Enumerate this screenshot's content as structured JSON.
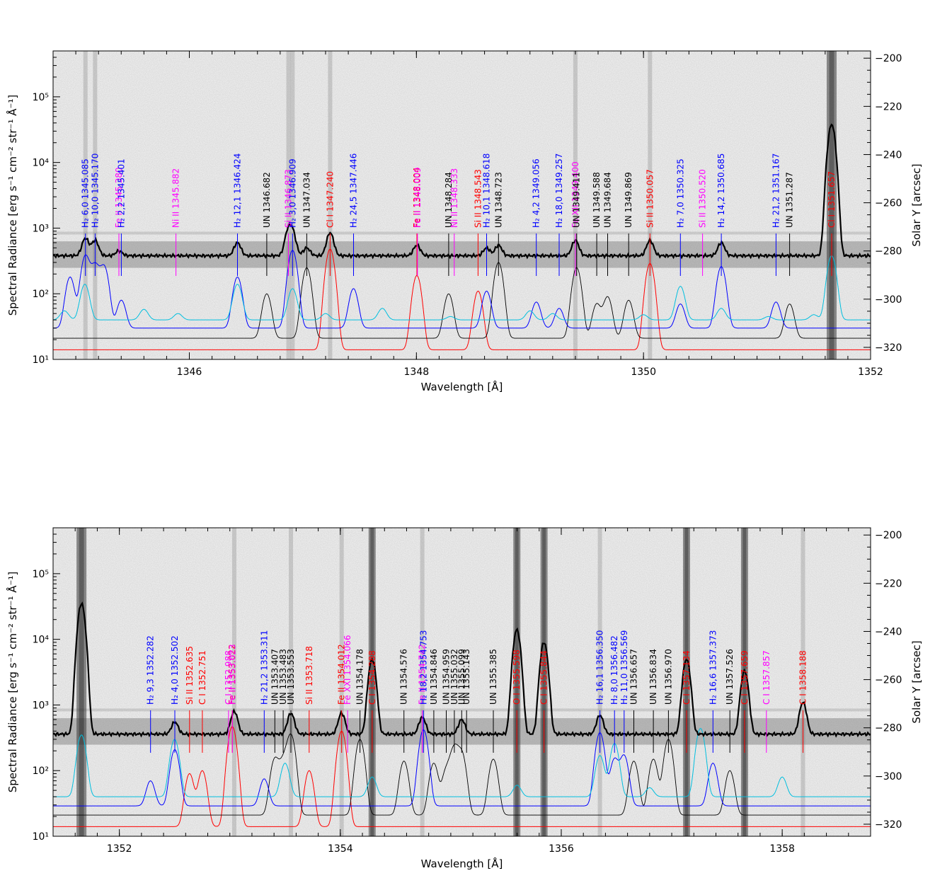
{
  "colors": {
    "h2": "#0000ff",
    "red": "#ff0000",
    "magenta": "#ff00ff",
    "gray": "#000000",
    "black": "#000000",
    "cyan": "#00bfdf",
    "specbg": "#a8a8a8"
  },
  "chart_data": [
    {
      "type": "line",
      "xlabel": "Wavelength [Å]",
      "ylabel": "Spectral Radiance [erg s⁻¹ cm⁻² str⁻¹ Å⁻¹]",
      "y2label": "Solar Y [arcsec]",
      "xlim": [
        1344.8,
        1352.0
      ],
      "ylim": [
        10,
        500000
      ],
      "ylog": true,
      "y2lim": [
        -325,
        -197
      ],
      "xticks": [
        1346,
        1348,
        1350,
        1352
      ],
      "yticks": [
        {
          "v": 10,
          "label": "10¹"
        },
        {
          "v": 100,
          "label": "10²"
        },
        {
          "v": 1000,
          "label": "10³"
        },
        {
          "v": 10000,
          "label": "10⁴"
        },
        {
          "v": 100000,
          "label": "10⁵"
        }
      ],
      "y2ticks": [
        -320,
        -300,
        -280,
        -260,
        -240,
        -220,
        -200
      ],
      "series": [
        {
          "kind": "observed",
          "peaks": [
            [
              1345.085,
              700
            ],
            [
              1345.17,
              650
            ],
            [
              1345.38,
              450
            ],
            [
              1346.424,
              600
            ],
            [
              1346.873,
              900
            ],
            [
              1346.909,
              800
            ],
            [
              1347.034,
              500
            ],
            [
              1347.24,
              850
            ],
            [
              1348.004,
              550
            ],
            [
              1348.618,
              500
            ],
            [
              1348.723,
              550
            ],
            [
              1349.4,
              650
            ],
            [
              1350.057,
              650
            ],
            [
              1350.685,
              600
            ],
            [
              1351.657,
              38000
            ]
          ],
          "base": 380
        },
        {
          "kind": "h2",
          "peaks": [
            [
              1344.95,
              180
            ],
            [
              1345.085,
              380
            ],
            [
              1345.17,
              270
            ],
            [
              1345.25,
              260
            ],
            [
              1345.401,
              80
            ],
            [
              1346.424,
              180
            ],
            [
              1346.909,
              460
            ],
            [
              1347.446,
              120
            ],
            [
              1348.618,
              110
            ],
            [
              1349.056,
              75
            ],
            [
              1349.257,
              60
            ],
            [
              1350.325,
              70
            ],
            [
              1350.685,
              260
            ],
            [
              1351.167,
              75
            ]
          ],
          "base": 30
        },
        {
          "kind": "unidentified",
          "peaks": [
            [
              1346.682,
              100
            ],
            [
              1347.034,
              250
            ],
            [
              1348.284,
              100
            ],
            [
              1348.723,
              300
            ],
            [
              1349.411,
              250
            ],
            [
              1349.588,
              70
            ],
            [
              1349.684,
              90
            ],
            [
              1349.869,
              80
            ],
            [
              1351.287,
              70
            ]
          ],
          "base": 21
        },
        {
          "kind": "strong",
          "peaks": [
            [
              1347.24,
              480
            ],
            [
              1348.004,
              190
            ],
            [
              1348.543,
              110
            ],
            [
              1350.057,
              290
            ]
          ],
          "base": 14
        },
        {
          "kind": "model",
          "peaks": [
            [
              1344.9,
              55
            ],
            [
              1345.08,
              140
            ],
            [
              1345.6,
              58
            ],
            [
              1345.9,
              50
            ],
            [
              1346.424,
              140
            ],
            [
              1346.909,
              120
            ],
            [
              1347.2,
              50
            ],
            [
              1347.7,
              60
            ],
            [
              1348.3,
              45
            ],
            [
              1349.0,
              55
            ],
            [
              1349.2,
              50
            ],
            [
              1350.0,
              48
            ],
            [
              1350.325,
              130
            ],
            [
              1350.685,
              60
            ],
            [
              1351.1,
              45
            ],
            [
              1351.5,
              48
            ],
            [
              1351.657,
              380
            ]
          ],
          "base": 40
        }
      ],
      "annotations": [
        {
          "x": 1345.085,
          "lab": "H₂ 6,0 1345.085",
          "c": "h2"
        },
        {
          "x": 1345.17,
          "lab": "H₂ 10,0 1345.170",
          "c": "h2"
        },
        {
          "x": 1345.38,
          "lab": "Fe II 1345.380",
          "c": "magenta"
        },
        {
          "x": 1345.401,
          "lab": "H₂ 2,2 1345.401",
          "c": "h2"
        },
        {
          "x": 1345.882,
          "lab": "Ni II 1345.882",
          "c": "magenta"
        },
        {
          "x": 1346.424,
          "lab": "H₂ 12,1 1346.424",
          "c": "h2"
        },
        {
          "x": 1346.682,
          "lab": "UN 1346.682",
          "c": "gray"
        },
        {
          "x": 1346.873,
          "lab": "Si II 1346.873",
          "c": "magenta"
        },
        {
          "x": 1346.909,
          "lab": "H₂ 3,0 1346.909",
          "c": "h2"
        },
        {
          "x": 1347.034,
          "lab": "UN 1347.034",
          "c": "gray"
        },
        {
          "x": 1347.24,
          "lab": "Cl I 1347.240",
          "c": "red"
        },
        {
          "x": 1347.446,
          "lab": "H₂ 24,5 1347.446",
          "c": "h2"
        },
        {
          "x": 1348.004,
          "lab": "Fe II 1348.004",
          "c": "red"
        },
        {
          "x": 1348.009,
          "lab": "Fe II 1348.009",
          "c": "magenta"
        },
        {
          "x": 1348.284,
          "lab": "UN 1348.284",
          "c": "gray"
        },
        {
          "x": 1348.333,
          "lab": "Ni II 1348.333",
          "c": "magenta"
        },
        {
          "x": 1348.543,
          "lab": "Si II 1348.543",
          "c": "red"
        },
        {
          "x": 1348.618,
          "lab": "H₂ 10,1 1348.618",
          "c": "h2"
        },
        {
          "x": 1348.723,
          "lab": "UN 1348.723",
          "c": "gray"
        },
        {
          "x": 1349.056,
          "lab": "H₂ 4,2 1349.056",
          "c": "h2"
        },
        {
          "x": 1349.257,
          "lab": "H₂ 18,0 1349.257",
          "c": "h2"
        },
        {
          "x": 1349.4,
          "lab": "Fe XII 1349.400",
          "c": "magenta"
        },
        {
          "x": 1349.411,
          "lab": "UN 1349.411",
          "c": "gray"
        },
        {
          "x": 1349.588,
          "lab": "UN 1349.588",
          "c": "gray"
        },
        {
          "x": 1349.684,
          "lab": "UN 1349.684",
          "c": "gray"
        },
        {
          "x": 1349.869,
          "lab": "UN 1349.869",
          "c": "gray"
        },
        {
          "x": 1350.057,
          "lab": "Si II 1350.057",
          "c": "red"
        },
        {
          "x": 1350.325,
          "lab": "H₂ 7,0 1350.325",
          "c": "h2"
        },
        {
          "x": 1350.52,
          "lab": "Si II 1350.520",
          "c": "magenta"
        },
        {
          "x": 1350.685,
          "lab": "H₂ 14,2 1350.685",
          "c": "h2"
        },
        {
          "x": 1351.167,
          "lab": "H₂ 21,2 1351.167",
          "c": "h2"
        },
        {
          "x": 1351.287,
          "lab": "UN 1351.287",
          "c": "gray"
        },
        {
          "x": 1351.657,
          "lab": "Cl I 1351.657",
          "c": "red"
        }
      ]
    },
    {
      "type": "line",
      "xlabel": "Wavelength [Å]",
      "ylabel": "Spectral Radiance [erg s⁻¹ cm⁻² str⁻¹ Å⁻¹]",
      "y2label": "Solar Y [arcsec]",
      "xlim": [
        1351.4,
        1358.8
      ],
      "ylim": [
        10,
        500000
      ],
      "ylog": true,
      "y2lim": [
        -325,
        -197
      ],
      "xticks": [
        1352,
        1354,
        1356,
        1358
      ],
      "yticks": [
        {
          "v": 10,
          "label": "10¹"
        },
        {
          "v": 100,
          "label": "10²"
        },
        {
          "v": 1000,
          "label": "10³"
        },
        {
          "v": 10000,
          "label": "10⁴"
        },
        {
          "v": 100000,
          "label": "10⁵"
        }
      ],
      "y2ticks": [
        -320,
        -300,
        -280,
        -260,
        -240,
        -220,
        -200
      ],
      "series": [
        {
          "kind": "observed",
          "peaks": [
            [
              1351.657,
              35000
            ],
            [
              1352.502,
              550
            ],
            [
              1353.04,
              800
            ],
            [
              1353.553,
              750
            ],
            [
              1354.012,
              750
            ],
            [
              1354.288,
              5000
            ],
            [
              1354.742,
              650
            ],
            [
              1355.099,
              600
            ],
            [
              1355.598,
              14000
            ],
            [
              1355.844,
              9000
            ],
            [
              1356.35,
              700
            ],
            [
              1357.134,
              5000
            ],
            [
              1357.659,
              3300
            ],
            [
              1358.188,
              1100
            ]
          ],
          "base": 360
        },
        {
          "kind": "h2",
          "peaks": [
            [
              1352.282,
              70
            ],
            [
              1352.502,
              210
            ],
            [
              1353.311,
              75
            ],
            [
              1354.753,
              420
            ],
            [
              1356.35,
              380
            ],
            [
              1356.482,
              150
            ],
            [
              1356.569,
              170
            ],
            [
              1357.373,
              130
            ]
          ],
          "base": 29
        },
        {
          "kind": "unidentified",
          "peaks": [
            [
              1353.407,
              150
            ],
            [
              1353.483,
              130
            ],
            [
              1353.553,
              350
            ],
            [
              1354.178,
              300
            ],
            [
              1354.576,
              140
            ],
            [
              1354.846,
              130
            ],
            [
              1354.959,
              100
            ],
            [
              1355.032,
              220
            ],
            [
              1355.099,
              180
            ],
            [
              1355.385,
              150
            ],
            [
              1356.657,
              140
            ],
            [
              1356.834,
              150
            ],
            [
              1356.97,
              300
            ],
            [
              1357.526,
              100
            ]
          ],
          "base": 21
        },
        {
          "kind": "strong",
          "peaks": [
            [
              1352.635,
              90
            ],
            [
              1352.751,
              100
            ],
            [
              1353.022,
              470
            ],
            [
              1353.718,
              100
            ],
            [
              1354.012,
              400
            ]
          ],
          "base": 14
        },
        {
          "kind": "model",
          "peaks": [
            [
              1351.657,
              350
            ],
            [
              1352.5,
              300
            ],
            [
              1353.5,
              130
            ],
            [
              1354.288,
              80
            ],
            [
              1355.6,
              60
            ],
            [
              1356.35,
              170
            ],
            [
              1356.482,
              260
            ],
            [
              1356.8,
              55
            ],
            [
              1357.26,
              440
            ],
            [
              1358.0,
              80
            ]
          ],
          "base": 40
        }
      ],
      "annotations": [
        {
          "x": 1352.282,
          "lab": "H₂ 9,3 1352.282",
          "c": "h2"
        },
        {
          "x": 1352.502,
          "lab": "H₂ 4,0 1352.502",
          "c": "h2"
        },
        {
          "x": 1352.635,
          "lab": "Si II 1352.635",
          "c": "red"
        },
        {
          "x": 1352.751,
          "lab": "C I 1352.751",
          "c": "red"
        },
        {
          "x": 1352.988,
          "lab": "C I 1352.988",
          "c": "magenta"
        },
        {
          "x": 1353.022,
          "lab": "Fe II 1353.022",
          "c": "red"
        },
        {
          "x": 1353.023,
          "lab": "Fe II 1353.023",
          "c": "magenta"
        },
        {
          "x": 1353.311,
          "lab": "H₂ 21,2 1353.311",
          "c": "h2"
        },
        {
          "x": 1353.407,
          "lab": "UN 1353.407",
          "c": "gray"
        },
        {
          "x": 1353.483,
          "lab": "UN 1353.483",
          "c": "gray"
        },
        {
          "x": 1353.553,
          "lab": "UN 1353.553",
          "c": "gray"
        },
        {
          "x": 1353.718,
          "lab": "Si II 1353.718",
          "c": "red"
        },
        {
          "x": 1354.012,
          "lab": "Fe II 1354.012",
          "c": "red"
        },
        {
          "x": 1354.066,
          "lab": "Fe XXI 1354.066",
          "c": "magenta"
        },
        {
          "x": 1354.178,
          "lab": "UN 1354.178",
          "c": "gray"
        },
        {
          "x": 1354.288,
          "lab": "C I 1354.288",
          "c": "red"
        },
        {
          "x": 1354.576,
          "lab": "UN 1354.576",
          "c": "gray"
        },
        {
          "x": 1354.742,
          "lab": "Fe II 1354.742",
          "c": "magenta"
        },
        {
          "x": 1354.753,
          "lab": "H₂ 18,2 1354.753",
          "c": "h2"
        },
        {
          "x": 1354.846,
          "lab": "UN 1354.846",
          "c": "gray"
        },
        {
          "x": 1354.959,
          "lab": "UN 1354.959",
          "c": "gray"
        },
        {
          "x": 1355.032,
          "lab": "UN 1355.032",
          "c": "gray"
        },
        {
          "x": 1355.099,
          "lab": "UN 1355.099",
          "c": "gray"
        },
        {
          "x": 1355.143,
          "lab": "UN 1355.143",
          "c": "gray"
        },
        {
          "x": 1355.385,
          "lab": "UN 1355.385",
          "c": "gray"
        },
        {
          "x": 1355.598,
          "lab": "O I 1355.598",
          "c": "red"
        },
        {
          "x": 1355.844,
          "lab": "C I 1355.844",
          "c": "red"
        },
        {
          "x": 1356.35,
          "lab": "H₂ 16,1 1356.350",
          "c": "h2"
        },
        {
          "x": 1356.482,
          "lab": "H₂ 8,0 1356.482",
          "c": "h2"
        },
        {
          "x": 1356.569,
          "lab": "H₂ 11,0 1356.569",
          "c": "h2"
        },
        {
          "x": 1356.657,
          "lab": "UN 1356.657",
          "c": "gray"
        },
        {
          "x": 1356.834,
          "lab": "UN 1356.834",
          "c": "gray"
        },
        {
          "x": 1356.97,
          "lab": "UN 1356.970",
          "c": "gray"
        },
        {
          "x": 1357.134,
          "lab": "C I 1357.134",
          "c": "red"
        },
        {
          "x": 1357.373,
          "lab": "H₂ 16,6 1357.373",
          "c": "h2"
        },
        {
          "x": 1357.526,
          "lab": "UN 1357.526",
          "c": "gray"
        },
        {
          "x": 1357.659,
          "lab": "C I 1357.659",
          "c": "red"
        },
        {
          "x": 1357.857,
          "lab": "C I 1357.857",
          "c": "magenta"
        },
        {
          "x": 1358.188,
          "lab": "C I 1358.188",
          "c": "red"
        }
      ]
    }
  ]
}
